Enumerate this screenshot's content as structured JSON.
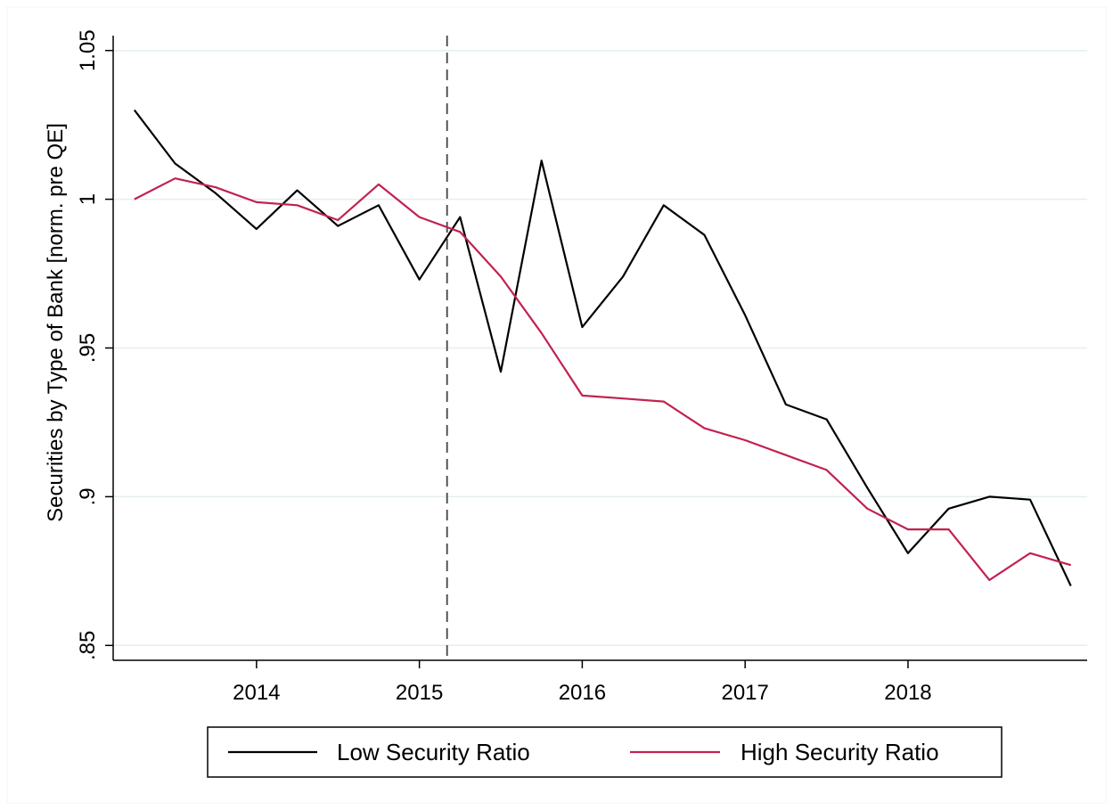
{
  "chart_data": {
    "type": "line",
    "title": "",
    "xlabel": "",
    "ylabel": "Securities by Type of Bank [norm. pre QE]",
    "xlim": [
      2013.12,
      2019.1
    ],
    "ylim": [
      0.845,
      1.055
    ],
    "x_ticks": [
      2014,
      2015,
      2016,
      2017,
      2018
    ],
    "x_tick_labels": [
      "2014",
      "2015",
      "2016",
      "2017",
      "2018"
    ],
    "y_ticks": [
      0.85,
      0.9,
      0.95,
      1,
      1.05
    ],
    "y_tick_labels": [
      ".85",
      ".9",
      ".95",
      "1",
      "1.05"
    ],
    "grid": true,
    "legend_position": "bottom",
    "vertical_reference_line": {
      "x": 2015.17,
      "style": "dashed"
    },
    "x": [
      2013.25,
      2013.5,
      2013.75,
      2014.0,
      2014.25,
      2014.5,
      2014.75,
      2015.0,
      2015.25,
      2015.5,
      2015.75,
      2016.0,
      2016.25,
      2016.5,
      2016.75,
      2017.0,
      2017.25,
      2017.5,
      2017.75,
      2018.0,
      2018.25,
      2018.5,
      2018.75,
      2019.0
    ],
    "series": [
      {
        "name": "Low Security Ratio",
        "color": "#000000",
        "values": [
          1.03,
          1.012,
          1.002,
          0.99,
          1.003,
          0.991,
          0.998,
          0.973,
          0.994,
          0.942,
          1.013,
          0.957,
          0.974,
          0.998,
          0.988,
          0.961,
          0.931,
          0.926,
          0.903,
          0.881,
          0.896,
          0.9,
          0.899,
          0.87
        ]
      },
      {
        "name": "High Security Ratio",
        "color": "#c1224f",
        "values": [
          1.0,
          1.007,
          1.004,
          0.999,
          0.998,
          0.993,
          1.005,
          0.994,
          0.989,
          0.974,
          0.955,
          0.934,
          0.933,
          0.932,
          0.923,
          0.919,
          0.914,
          0.909,
          0.896,
          0.889,
          0.889,
          0.872,
          0.881,
          0.877
        ]
      }
    ]
  }
}
